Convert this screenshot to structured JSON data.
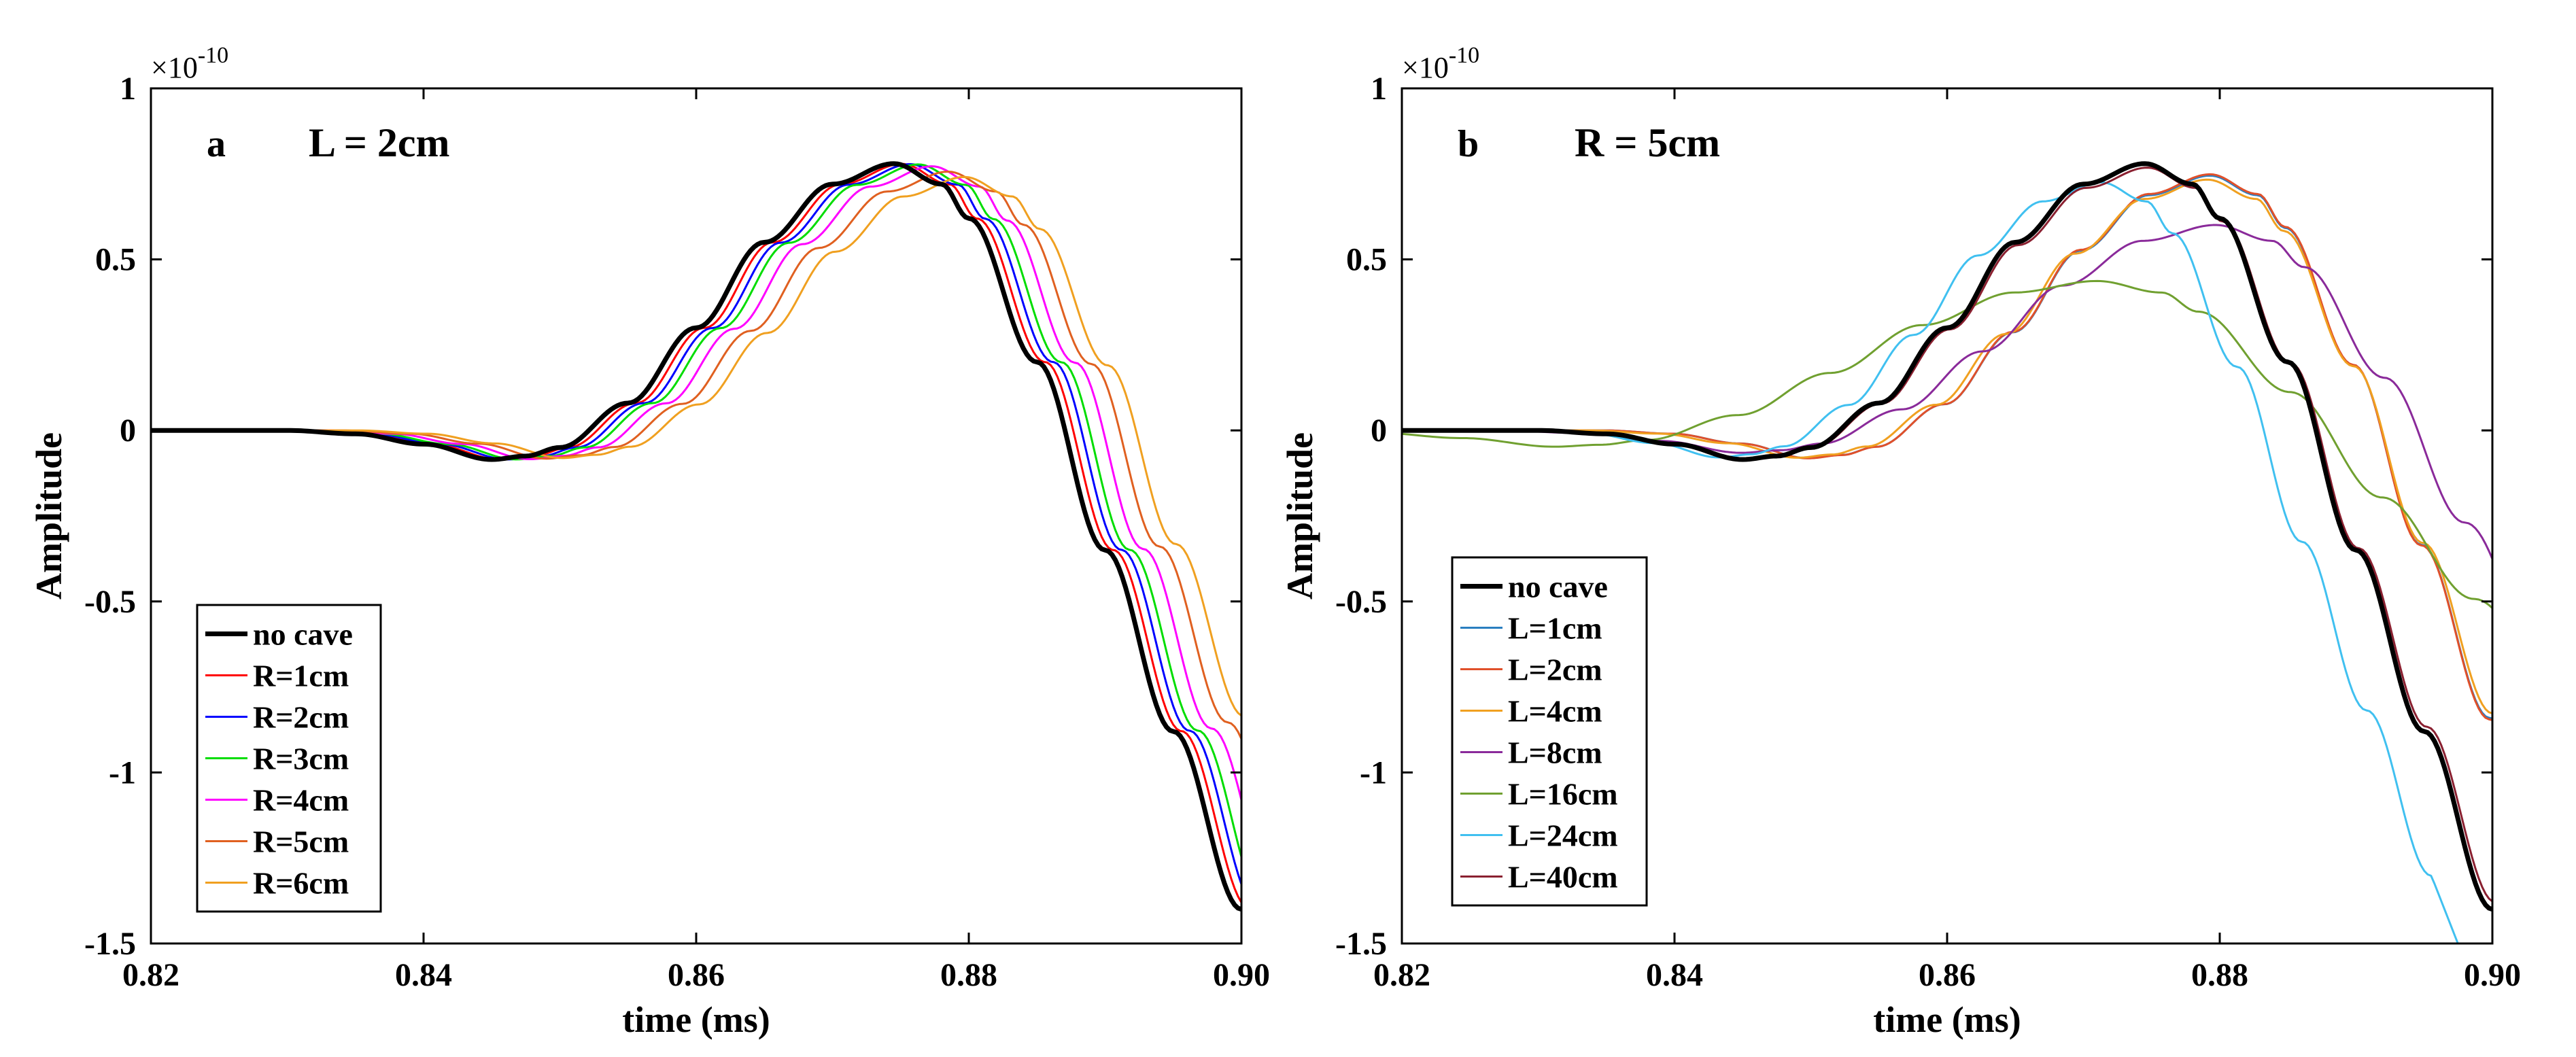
{
  "chart_data": [
    {
      "type": "line",
      "panel_label": "a",
      "title": "L = 2cm",
      "xlabel": "time (ms)",
      "ylabel": "Amplitude",
      "y_exponent_base": "×10",
      "y_exponent_power": "-10",
      "xlim": [
        0.82,
        0.9
      ],
      "ylim": [
        -1.5,
        1
      ],
      "x_ticks": [
        0.82,
        0.84,
        0.86,
        0.88,
        0.9
      ],
      "x_tick_labels": [
        "0.82",
        "0.84",
        "0.86",
        "0.88",
        "0.90"
      ],
      "y_ticks": [
        1,
        0.5,
        0,
        -0.5,
        -1,
        -1.5
      ],
      "y_tick_labels": [
        "1",
        "0.5",
        "0",
        "-0.5",
        "-1",
        "-1.5"
      ],
      "legend_position": "bottom-left",
      "series": [
        {
          "name": "no cave",
          "color": "#000000",
          "width": 7,
          "shift": 0,
          "amp": 1.0
        },
        {
          "name": "R=1cm",
          "color": "#ff0000",
          "width": 3,
          "shift": 0.0006,
          "amp": 0.999
        },
        {
          "name": "R=2cm",
          "color": "#0000ff",
          "width": 3,
          "shift": 0.0012,
          "amp": 0.998
        },
        {
          "name": "R=3cm",
          "color": "#00dd00",
          "width": 3,
          "shift": 0.0018,
          "amp": 0.997
        },
        {
          "name": "R=4cm",
          "color": "#ff00ff",
          "width": 3,
          "shift": 0.0028,
          "amp": 0.99
        },
        {
          "name": "R=5cm",
          "color": "#e06020",
          "width": 3,
          "shift": 0.004,
          "amp": 0.97
        },
        {
          "name": "R=6cm",
          "color": "#f0a020",
          "width": 3,
          "shift": 0.0052,
          "amp": 0.95
        }
      ]
    },
    {
      "type": "line",
      "panel_label": "b",
      "title": "R = 5cm",
      "xlabel": "time (ms)",
      "ylabel": "Amplitude",
      "y_exponent_base": "×10",
      "y_exponent_power": "-10",
      "xlim": [
        0.82,
        0.9
      ],
      "ylim": [
        -1.5,
        1
      ],
      "x_ticks": [
        0.82,
        0.84,
        0.86,
        0.88,
        0.9
      ],
      "x_tick_labels": [
        "0.82",
        "0.84",
        "0.86",
        "0.88",
        "0.90"
      ],
      "y_ticks": [
        1,
        0.5,
        0,
        -0.5,
        -1,
        -1.5
      ],
      "y_tick_labels": [
        "1",
        "0.5",
        "0",
        "-0.5",
        "-1",
        "-1.5"
      ],
      "legend_position": "bottom-left",
      "series": [
        {
          "name": "no cave",
          "color": "#000000",
          "width": 7,
          "shift": 0,
          "amp": 1.0,
          "stretch": 1.0
        },
        {
          "name": "L=1cm",
          "color": "#2a7fc0",
          "width": 3,
          "shift": 0.0048,
          "amp": 0.955,
          "stretch": 1.0
        },
        {
          "name": "L=2cm",
          "color": "#e0502a",
          "width": 3,
          "shift": 0.0048,
          "amp": 0.96,
          "stretch": 1.0
        },
        {
          "name": "L=4cm",
          "color": "#f0a020",
          "width": 3,
          "shift": 0.0046,
          "amp": 0.94,
          "stretch": 1.02
        },
        {
          "name": "L=8cm",
          "color": "#8a2a9a",
          "width": 3,
          "shift": 0.0052,
          "amp": 0.77,
          "stretch": 1.18
        },
        {
          "name": "L=16cm",
          "color": "#70a030",
          "width": 3,
          "shift": -0.0035,
          "amp": 0.56,
          "stretch": 1.35
        },
        {
          "name": "L=24cm",
          "color": "#40c0f0",
          "width": 3,
          "shift": -0.0032,
          "amp": 0.93,
          "stretch": 0.95
        },
        {
          "name": "L=40cm",
          "color": "#8a2030",
          "width": 3,
          "shift": 0.0002,
          "amp": 0.985,
          "stretch": 1.0
        }
      ]
    }
  ]
}
